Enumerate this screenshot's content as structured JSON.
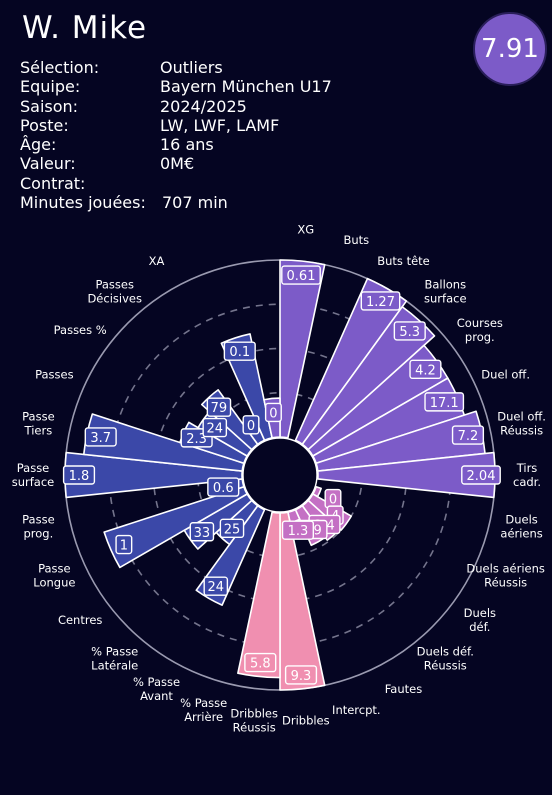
{
  "player": {
    "name": "W. Mike",
    "score": "7.91"
  },
  "info": [
    {
      "label": "Sélection:",
      "value": "Outliers"
    },
    {
      "label": "Equipe:",
      "value": "Bayern München U17"
    },
    {
      "label": "Saison:",
      "value": "2024/2025"
    },
    {
      "label": "Poste:",
      "value": "LW, LWF, LAMF"
    },
    {
      "label": "Âge:",
      "value": "16 ans"
    },
    {
      "label": "Valeur:",
      "value": "0M€"
    },
    {
      "label": "Contrat:",
      "value": ""
    },
    {
      "label": "Minutes jouées:",
      "value": "707 min"
    }
  ],
  "chart_data": {
    "type": "radial-bar",
    "range": [
      0,
      100
    ],
    "colors": {
      "attack": "#7c5bc8",
      "defense": "#c470c4",
      "possession": "#f08fb0",
      "passing": "#3b48a8",
      "grid": "#9a9ab0",
      "background": "#050522"
    },
    "categories": [
      {
        "label": "XG",
        "value": "0.61",
        "pct": 100,
        "group": "attack"
      },
      {
        "label": "Buts",
        "value": "",
        "pct": 0,
        "group": "attack"
      },
      {
        "label": "Buts tête",
        "value": "1.27",
        "pct": 100,
        "group": "attack"
      },
      {
        "label": "Ballons surface",
        "value": "5.3",
        "pct": 96,
        "group": "attack"
      },
      {
        "label": "Courses prog.",
        "value": "4.2",
        "pct": 88,
        "group": "attack"
      },
      {
        "label": "Duel off.",
        "value": "17.1",
        "pct": 88,
        "group": "attack"
      },
      {
        "label": "Duel off. Réussis",
        "value": "7.2",
        "pct": 95,
        "group": "attack"
      },
      {
        "label": "Tirs cadr.",
        "value": "2.04",
        "pct": 100,
        "group": "attack"
      },
      {
        "label": "Duels aériens",
        "value": "",
        "pct": 0,
        "group": "defense"
      },
      {
        "label": "Duels aériens Réussis",
        "value": "0",
        "pct": 3,
        "group": "defense"
      },
      {
        "label": "Duels déf.",
        "value": "4",
        "pct": 25,
        "group": "defense"
      },
      {
        "label": "Duels déf. Réussis",
        "value": "2.4",
        "pct": 24,
        "group": "defense"
      },
      {
        "label": "Fautes",
        "value": "0.9",
        "pct": 22,
        "group": "defense"
      },
      {
        "label": "Intercpt.",
        "value": "1.3",
        "pct": 6,
        "group": "defense"
      },
      {
        "label": "Dribbles",
        "value": "9.3",
        "pct": 100,
        "group": "possession"
      },
      {
        "label": "Dribbles Réussis",
        "value": "5.8",
        "pct": 93,
        "group": "possession"
      },
      {
        "label": "% Passe Arrière",
        "value": "",
        "pct": 0,
        "group": "passing"
      },
      {
        "label": "% Passe Avant",
        "value": "24",
        "pct": 59,
        "group": "passing"
      },
      {
        "label": "% Passe Latérale",
        "value": "25",
        "pct": 27,
        "group": "passing"
      },
      {
        "label": "Centres",
        "value": "33",
        "pct": 41,
        "group": "passing"
      },
      {
        "label": "Passe Longue",
        "value": "1",
        "pct": 83,
        "group": "passing"
      },
      {
        "label": "Passe prog.",
        "value": "0.6",
        "pct": 8,
        "group": "passing"
      },
      {
        "label": "Passe surface",
        "value": "1.8",
        "pct": 100,
        "group": "passing"
      },
      {
        "label": "Passe Tiers",
        "value": "3.7",
        "pct": 90,
        "group": "passing"
      },
      {
        "label": "Passes",
        "value": "2.3",
        "pct": 38,
        "group": "passing"
      },
      {
        "label": "Passes %",
        "value": "24",
        "pct": 32,
        "group": "passing"
      },
      {
        "label": "Passes Décisives",
        "value": "79",
        "pct": 38,
        "group": "passing"
      },
      {
        "label": "XA",
        "value": "0",
        "pct": 13,
        "group": "passing"
      },
      {
        "label": "",
        "value": "0.1",
        "pct": 60,
        "group": "passing"
      },
      {
        "label": "",
        "value": "0",
        "pct": 22,
        "group": "attack"
      }
    ]
  }
}
